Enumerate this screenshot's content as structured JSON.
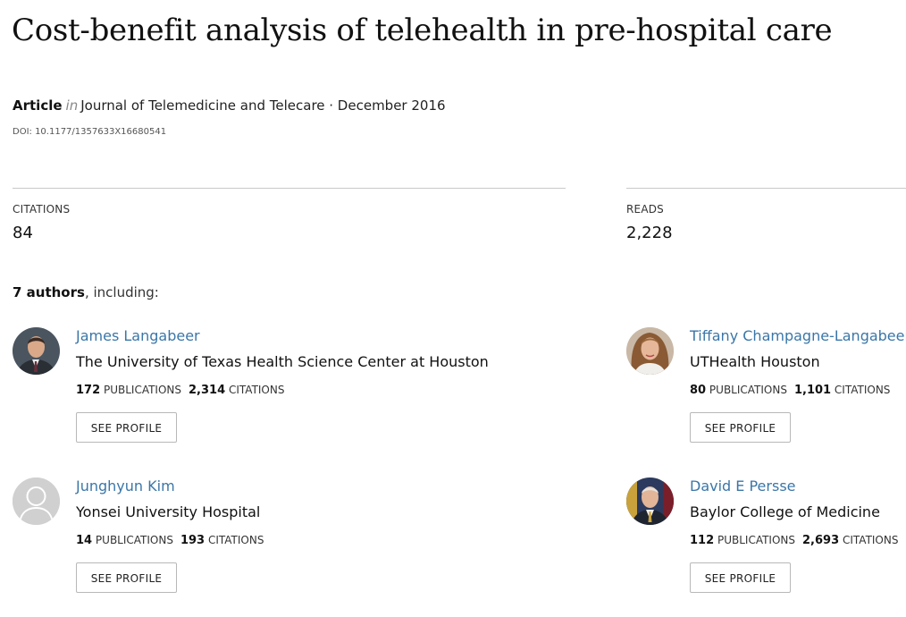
{
  "article": {
    "title": "Cost-benefit analysis of telehealth in pre-hospital care",
    "type": "Article",
    "in_word": "in",
    "journal_date": "Journal of Telemedicine and Telecare · December 2016",
    "doi": "DOI: 10.1177/1357633X16680541"
  },
  "stats": {
    "citations": {
      "label": "CITATIONS",
      "value": "84"
    },
    "reads": {
      "label": "READS",
      "value": "2,228"
    }
  },
  "authors_header": {
    "count": "7 authors",
    "suffix": ", including:"
  },
  "authors": [
    {
      "name": "James Langabeer",
      "institution": "The University of Texas Health Science Center at Houston",
      "publications": "172",
      "publications_label": "PUBLICATIONS",
      "citations": "2,314",
      "citations_label": "CITATIONS",
      "button": "SEE PROFILE"
    },
    {
      "name": "Tiffany Champagne-Langabeer",
      "institution": "UTHealth Houston",
      "publications": "80",
      "publications_label": "PUBLICATIONS",
      "citations": "1,101",
      "citations_label": "CITATIONS",
      "button": "SEE PROFILE"
    },
    {
      "name": "Junghyun Kim",
      "institution": "Yonsei University Hospital",
      "publications": "14",
      "publications_label": "PUBLICATIONS",
      "citations": "193",
      "citations_label": "CITATIONS",
      "button": "SEE PROFILE"
    },
    {
      "name": "David E Persse",
      "institution": "Baylor College of Medicine",
      "publications": "112",
      "publications_label": "PUBLICATIONS",
      "citations": "2,693",
      "citations_label": "CITATIONS",
      "button": "SEE PROFILE"
    }
  ]
}
